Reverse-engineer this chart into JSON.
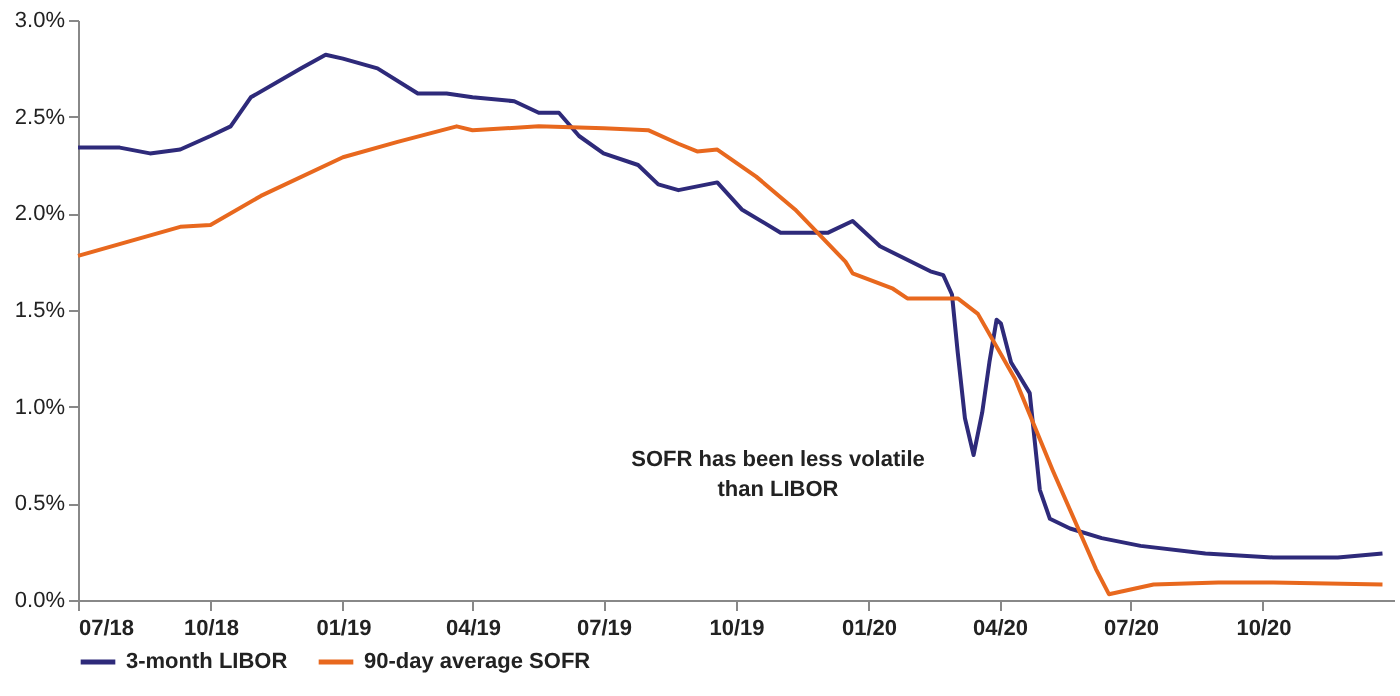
{
  "chart_data": {
    "type": "line",
    "legend": "bottom",
    "line_style": "solid",
    "marker": "none",
    "grid": false,
    "xlim": [
      "2018-07-01",
      "2020-12-31"
    ],
    "xticks": [
      {
        "value": "2018-07",
        "label": "07/18"
      },
      {
        "value": "2018-10",
        "label": "10/18"
      },
      {
        "value": "2019-01",
        "label": "01/19"
      },
      {
        "value": "2019-04",
        "label": "04/19"
      },
      {
        "value": "2019-07",
        "label": "07/19"
      },
      {
        "value": "2019-10",
        "label": "10/19"
      },
      {
        "value": "2020-01",
        "label": "01/20"
      },
      {
        "value": "2020-04",
        "label": "04/20"
      },
      {
        "value": "2020-07",
        "label": "07/20"
      },
      {
        "value": "2020-10",
        "label": "10/20"
      }
    ],
    "ylim": [
      0,
      3
    ],
    "yticks": [
      {
        "value": 0,
        "label": "0.0%"
      },
      {
        "value": 0.5,
        "label": "0.5%"
      },
      {
        "value": 1,
        "label": "1.0%"
      },
      {
        "value": 1.5,
        "label": "1.5%"
      },
      {
        "value": 2,
        "label": "2.0%"
      },
      {
        "value": 2.5,
        "label": "2.5%"
      },
      {
        "value": 3,
        "label": "3.0%"
      }
    ],
    "annotations": [
      "SOFR has been less volatile\nthan LIBOR"
    ],
    "series": [
      {
        "name": "3-month LIBOR",
        "color": "#2e2a7a",
        "x": [
          "2018-07-01",
          "2018-07-30",
          "2018-08-20",
          "2018-09-10",
          "2018-10-01",
          "2018-10-15",
          "2018-10-29",
          "2018-12-03",
          "2018-12-20",
          "2019-01-01",
          "2019-01-25",
          "2019-02-22",
          "2019-03-14",
          "2019-04-01",
          "2019-04-30",
          "2019-05-17",
          "2019-05-31",
          "2019-06-14",
          "2019-07-01",
          "2019-07-25",
          "2019-08-08",
          "2019-08-22",
          "2019-09-18",
          "2019-10-05",
          "2019-11-01",
          "2019-12-04",
          "2019-12-21",
          "2020-01-09",
          "2020-02-13",
          "2020-02-22",
          "2020-02-28",
          "2020-03-03",
          "2020-03-08",
          "2020-03-14",
          "2020-03-20",
          "2020-03-25",
          "2020-03-30",
          "2020-04-02",
          "2020-04-09",
          "2020-04-22",
          "2020-04-29",
          "2020-05-06",
          "2020-05-20",
          "2020-06-11",
          "2020-07-08",
          "2020-08-22",
          "2020-10-08",
          "2020-11-22",
          "2020-12-23"
        ],
        "values": [
          2.34,
          2.34,
          2.31,
          2.33,
          2.4,
          2.45,
          2.6,
          2.75,
          2.82,
          2.8,
          2.75,
          2.62,
          2.62,
          2.6,
          2.58,
          2.52,
          2.52,
          2.4,
          2.31,
          2.25,
          2.15,
          2.12,
          2.16,
          2.02,
          1.9,
          1.9,
          1.96,
          1.83,
          1.7,
          1.68,
          1.58,
          1.28,
          0.94,
          0.75,
          0.97,
          1.23,
          1.45,
          1.43,
          1.23,
          1.07,
          0.57,
          0.42,
          0.37,
          0.32,
          0.28,
          0.24,
          0.22,
          0.22,
          0.24
        ]
      },
      {
        "name": "90-day average SOFR",
        "color": "#e8681e",
        "x": [
          "2018-07-01",
          "2018-09-10",
          "2018-10-01",
          "2018-11-05",
          "2019-01-01",
          "2019-02-08",
          "2019-03-21",
          "2019-04-01",
          "2019-05-17",
          "2019-07-01",
          "2019-08-01",
          "2019-08-22",
          "2019-09-04",
          "2019-09-18",
          "2019-10-15",
          "2019-11-11",
          "2019-12-16",
          "2019-12-21",
          "2020-01-18",
          "2020-01-28",
          "2020-03-03",
          "2020-03-17",
          "2020-04-12",
          "2020-05-08",
          "2020-06-07",
          "2020-06-16",
          "2020-07-17",
          "2020-08-31",
          "2020-10-08",
          "2020-12-23"
        ],
        "values": [
          1.78,
          1.93,
          1.94,
          2.09,
          2.29,
          2.37,
          2.45,
          2.43,
          2.45,
          2.44,
          2.43,
          2.36,
          2.32,
          2.33,
          2.19,
          2.02,
          1.75,
          1.69,
          1.61,
          1.56,
          1.56,
          1.48,
          1.14,
          0.67,
          0.16,
          0.03,
          0.08,
          0.09,
          0.09,
          0.08
        ]
      }
    ]
  }
}
